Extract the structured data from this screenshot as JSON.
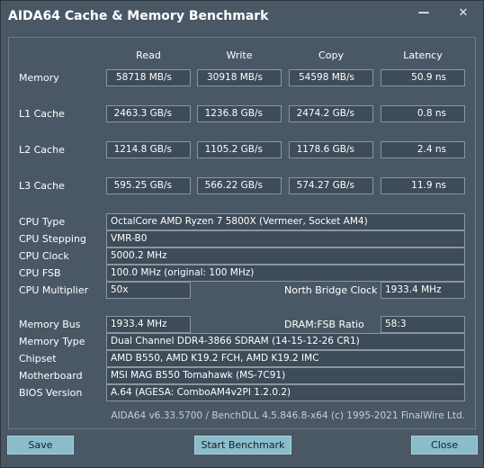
{
  "window": {
    "title": "AIDA64 Cache & Memory Benchmark",
    "minimize_glyph": "—",
    "close_glyph": "✕"
  },
  "columns": [
    "Read",
    "Write",
    "Copy",
    "Latency"
  ],
  "bench_rows": [
    {
      "label": "Memory",
      "values": [
        "58718 MB/s",
        "30918 MB/s",
        "54598 MB/s",
        "50.9 ns"
      ]
    },
    {
      "label": "L1 Cache",
      "values": [
        "2463.3 GB/s",
        "1236.8 GB/s",
        "2474.2 GB/s",
        "0.8 ns"
      ]
    },
    {
      "label": "L2 Cache",
      "values": [
        "1214.8 GB/s",
        "1105.2 GB/s",
        "1178.6 GB/s",
        "2.4 ns"
      ]
    },
    {
      "label": "L3 Cache",
      "values": [
        "595.25 GB/s",
        "566.22 GB/s",
        "574.27 GB/s",
        "11.9 ns"
      ]
    }
  ],
  "cpu": {
    "type_label": "CPU Type",
    "type_value": "OctalCore AMD Ryzen 7 5800X  (Vermeer, Socket AM4)",
    "stepping_label": "CPU Stepping",
    "stepping_value": "VMR-B0",
    "clock_label": "CPU Clock",
    "clock_value": "5000.2 MHz",
    "fsb_label": "CPU FSB",
    "fsb_value": "100.0 MHz  (original: 100 MHz)",
    "multiplier_label": "CPU Multiplier",
    "multiplier_value": "50x",
    "nb_clock_label": "North Bridge Clock",
    "nb_clock_value": "1933.4 MHz"
  },
  "memory": {
    "bus_label": "Memory Bus",
    "bus_value": "1933.4 MHz",
    "ratio_label": "DRAM:FSB Ratio",
    "ratio_value": "58:3",
    "type_label": "Memory Type",
    "type_value": "Dual Channel DDR4-3866 SDRAM  (14-15-12-26 CR1)",
    "chipset_label": "Chipset",
    "chipset_value": "AMD B550, AMD K19.2 FCH, AMD K19.2 IMC",
    "motherboard_label": "Motherboard",
    "motherboard_value": "MSI MAG B550 Tomahawk (MS-7C91)",
    "bios_label": "BIOS Version",
    "bios_value": "A.64  (AGESA: ComboAM4v2PI 1.2.0.2)"
  },
  "footer": "AIDA64 v6.33.5700 / BenchDLL 4.5.846.8-x64  (c) 1995-2021 FinalWire Ltd.",
  "buttons": {
    "save": "Save",
    "start": "Start Benchmark",
    "close": "Close"
  }
}
